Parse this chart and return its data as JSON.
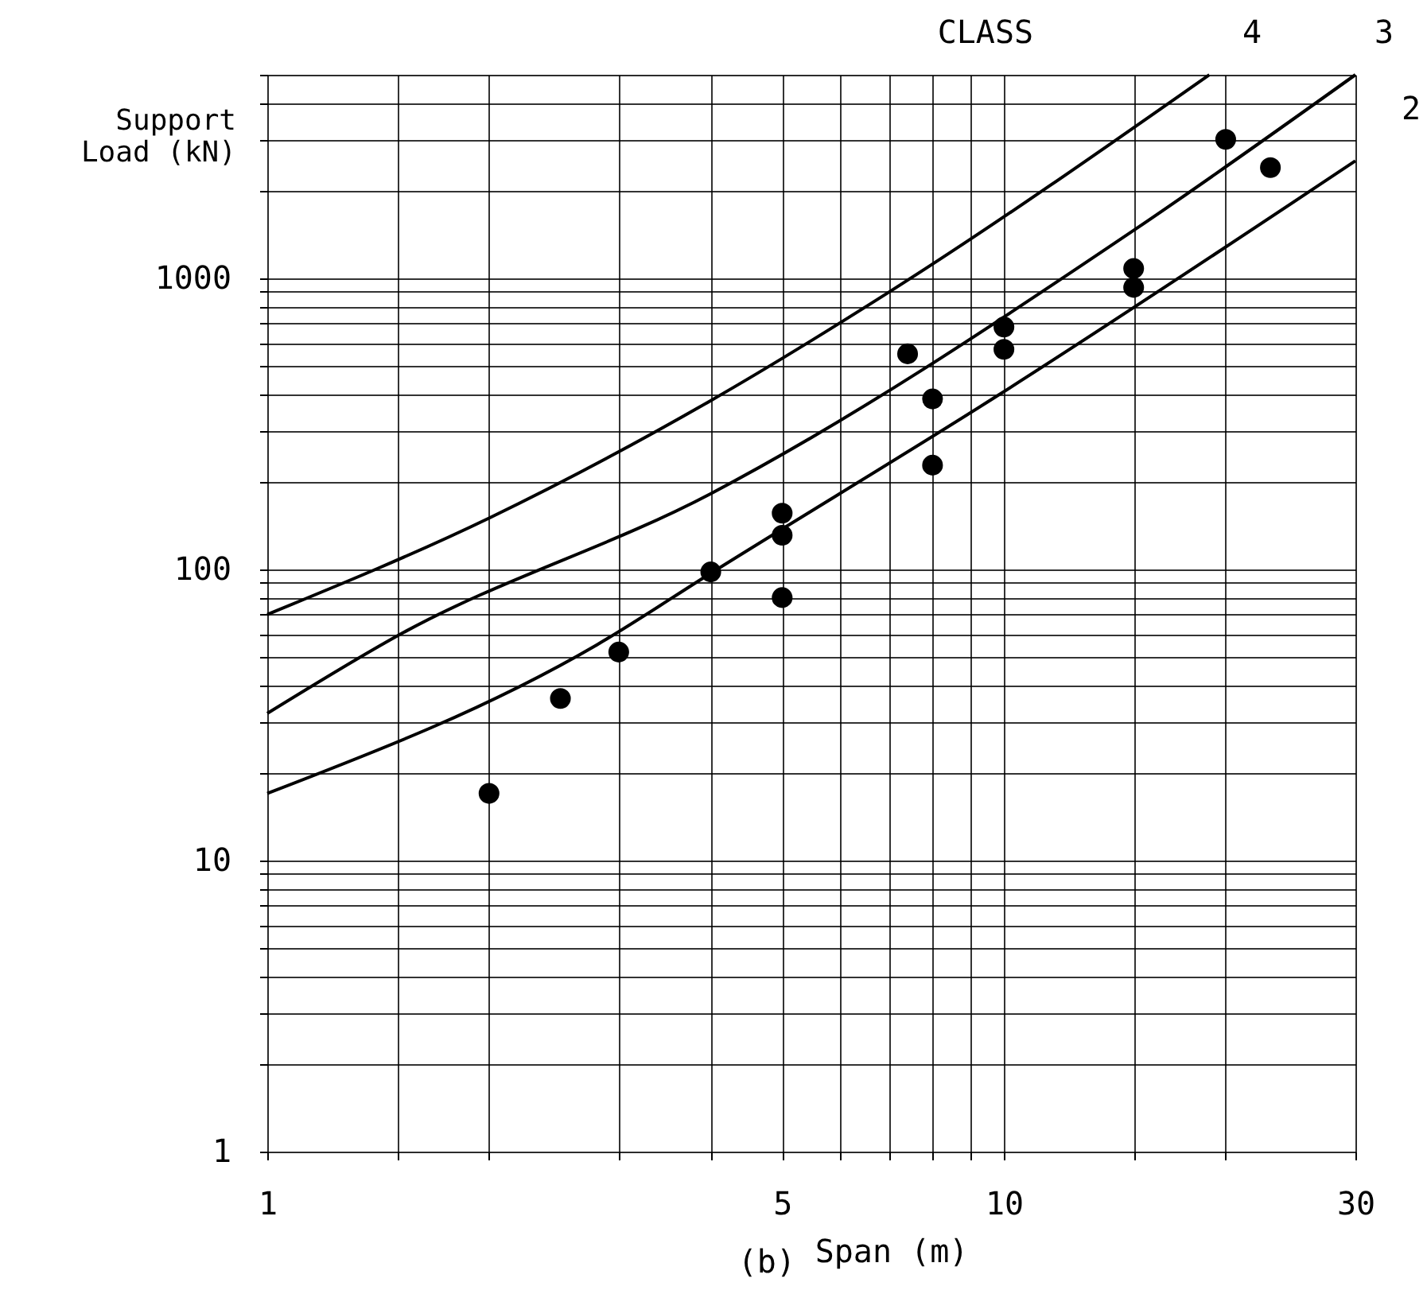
{
  "chart_data": {
    "type": "scatter",
    "xlabel": "Span (m)",
    "ylabel": "Support Load (kN)",
    "log": "xy",
    "grid": true,
    "xlim": [
      1,
      30
    ],
    "ylim": [
      1,
      5000
    ],
    "xticks": [
      1,
      {
        "value": 1.5,
        "label": null
      },
      {
        "value": 2,
        "label": null
      },
      {
        "value": 3,
        "label": null
      },
      {
        "value": 4,
        "label": null
      },
      5,
      {
        "value": 6,
        "label": null
      },
      {
        "value": 7,
        "label": null
      },
      {
        "value": 8,
        "label": null
      },
      {
        "value": 9,
        "label": null
      },
      10,
      {
        "value": 15,
        "label": null
      },
      {
        "value": 20,
        "label": null
      },
      30
    ],
    "yticks": [
      1,
      {
        "value": 2,
        "label": null
      },
      {
        "value": 3,
        "label": null
      },
      {
        "value": 4,
        "label": null
      },
      {
        "value": 5,
        "label": null
      },
      {
        "value": 6,
        "label": null
      },
      {
        "value": 7,
        "label": null
      },
      {
        "value": 8,
        "label": null
      },
      {
        "value": 9,
        "label": null
      },
      10,
      {
        "value": 20,
        "label": null
      },
      {
        "value": 30,
        "label": null
      },
      {
        "value": 40,
        "label": null
      },
      {
        "value": 50,
        "label": null
      },
      {
        "value": 60,
        "label": null
      },
      {
        "value": 70,
        "label": null
      },
      {
        "value": 80,
        "label": null
      },
      {
        "value": 90,
        "label": null
      },
      100,
      {
        "value": 200,
        "label": null
      },
      {
        "value": 300,
        "label": null
      },
      {
        "value": 400,
        "label": null
      },
      {
        "value": 500,
        "label": null
      },
      {
        "value": 600,
        "label": null
      },
      {
        "value": 700,
        "label": null
      },
      {
        "value": 800,
        "label": null
      },
      {
        "value": 900,
        "label": null
      },
      1000,
      {
        "value": 2000,
        "label": null
      },
      {
        "value": 3000,
        "label": null
      },
      {
        "value": 4000,
        "label": null
      },
      {
        "value": 5000,
        "label": null
      }
    ],
    "series": [
      {
        "type": "line",
        "color": "#000000",
        "x": [
          1,
          2,
          4,
          7,
          19
        ],
        "values": [
          70,
          150,
          380,
          900,
          5000
        ]
      },
      {
        "type": "line",
        "color": "#000000",
        "x": [
          1,
          1.5,
          4,
          15,
          30
        ],
        "values": [
          32,
          59,
          182,
          1460,
          5000
        ]
      },
      {
        "type": "line",
        "color": "#000000",
        "x": [
          1,
          2.8,
          4,
          9.8,
          30
        ],
        "values": [
          17,
          55,
          97,
          395,
          2530
        ]
      },
      {
        "color": "#000000",
        "marker": "circle",
        "x": [
          20,
          23,
          15,
          15,
          10,
          10,
          7.4,
          8,
          8,
          5,
          5,
          4,
          5,
          3,
          2.5,
          2
        ],
        "values": [
          3000,
          2400,
          1080,
          930,
          680,
          570,
          550,
          385,
          228,
          156,
          131,
          98,
          80,
          52,
          36,
          17
        ]
      }
    ],
    "annotations": [
      "CLASS",
      "(b)",
      "4",
      "3",
      "2"
    ]
  }
}
